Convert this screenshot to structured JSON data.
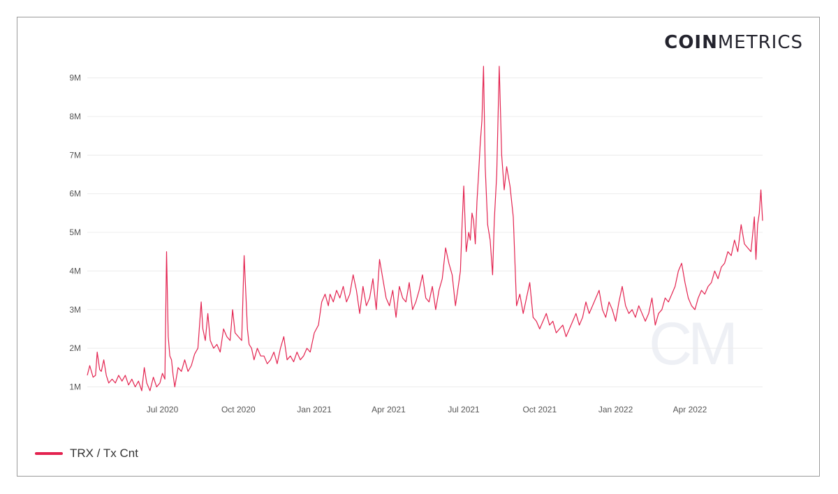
{
  "brand": {
    "bold": "COIN",
    "regular": "METRICS",
    "watermark": "CM"
  },
  "colors": {
    "series": "#e3224f",
    "grid": "#ececec",
    "frame": "#9a9a9a"
  },
  "legend": {
    "label": "TRX / Tx Cnt"
  },
  "chart_data": {
    "type": "line",
    "title": "",
    "xlabel": "",
    "ylabel": "",
    "y_tick_labels": [
      "1M",
      "2M",
      "3M",
      "4M",
      "5M",
      "6M",
      "7M",
      "8M",
      "9M"
    ],
    "y_ticks": [
      1000000,
      2000000,
      3000000,
      4000000,
      5000000,
      6000000,
      7000000,
      8000000,
      9000000
    ],
    "ylim": [
      900000,
      9300000
    ],
    "x_tick_labels": [
      "Jul 2020",
      "Oct 2020",
      "Jan 2021",
      "Apr 2021",
      "Jul 2021",
      "Oct 2021",
      "Jan 2022",
      "Apr 2022"
    ],
    "x_ticks": [
      "2020-07-01",
      "2020-10-01",
      "2021-01-01",
      "2021-04-01",
      "2021-07-01",
      "2021-10-01",
      "2022-01-01",
      "2022-04-01"
    ],
    "xlim": [
      "2020-04-01",
      "2022-06-28"
    ],
    "grid": "horizontal",
    "legend_position": "bottom-left",
    "series": [
      {
        "name": "TRX / Tx Cnt",
        "x": [
          "2020-04-01",
          "2020-04-04",
          "2020-04-08",
          "2020-04-11",
          "2020-04-13",
          "2020-04-16",
          "2020-04-18",
          "2020-04-21",
          "2020-04-24",
          "2020-04-27",
          "2020-05-01",
          "2020-05-05",
          "2020-05-09",
          "2020-05-13",
          "2020-05-17",
          "2020-05-21",
          "2020-05-25",
          "2020-05-29",
          "2020-06-02",
          "2020-06-06",
          "2020-06-09",
          "2020-06-12",
          "2020-06-16",
          "2020-06-20",
          "2020-06-24",
          "2020-06-28",
          "2020-07-01",
          "2020-07-04",
          "2020-07-06",
          "2020-07-08",
          "2020-07-10",
          "2020-07-12",
          "2020-07-14",
          "2020-07-16",
          "2020-07-20",
          "2020-07-24",
          "2020-07-28",
          "2020-08-01",
          "2020-08-05",
          "2020-08-09",
          "2020-08-13",
          "2020-08-17",
          "2020-08-19",
          "2020-08-22",
          "2020-08-25",
          "2020-08-28",
          "2020-09-01",
          "2020-09-05",
          "2020-09-09",
          "2020-09-13",
          "2020-09-17",
          "2020-09-21",
          "2020-09-24",
          "2020-09-27",
          "2020-10-01",
          "2020-10-05",
          "2020-10-08",
          "2020-10-12",
          "2020-10-14",
          "2020-10-17",
          "2020-10-20",
          "2020-10-24",
          "2020-10-28",
          "2020-11-01",
          "2020-11-05",
          "2020-11-09",
          "2020-11-13",
          "2020-11-17",
          "2020-11-21",
          "2020-11-25",
          "2020-11-29",
          "2020-12-03",
          "2020-12-07",
          "2020-12-11",
          "2020-12-15",
          "2020-12-19",
          "2020-12-23",
          "2020-12-27",
          "2021-01-01",
          "2021-01-06",
          "2021-01-10",
          "2021-01-14",
          "2021-01-18",
          "2021-01-20",
          "2021-01-24",
          "2021-01-28",
          "2021-02-01",
          "2021-02-05",
          "2021-02-09",
          "2021-02-13",
          "2021-02-17",
          "2021-02-21",
          "2021-02-25",
          "2021-03-01",
          "2021-03-05",
          "2021-03-09",
          "2021-03-13",
          "2021-03-17",
          "2021-03-21",
          "2021-03-25",
          "2021-03-29",
          "2021-04-02",
          "2021-04-06",
          "2021-04-10",
          "2021-04-14",
          "2021-04-18",
          "2021-04-22",
          "2021-04-26",
          "2021-04-30",
          "2021-05-04",
          "2021-05-08",
          "2021-05-12",
          "2021-05-16",
          "2021-05-20",
          "2021-05-24",
          "2021-05-28",
          "2021-06-01",
          "2021-06-05",
          "2021-06-09",
          "2021-06-13",
          "2021-06-17",
          "2021-06-21",
          "2021-06-23",
          "2021-06-25",
          "2021-06-27",
          "2021-06-29",
          "2021-07-01",
          "2021-07-04",
          "2021-07-07",
          "2021-07-09",
          "2021-07-11",
          "2021-07-13",
          "2021-07-15",
          "2021-07-17",
          "2021-07-19",
          "2021-07-21",
          "2021-07-23",
          "2021-07-25",
          "2021-07-27",
          "2021-07-30",
          "2021-08-02",
          "2021-08-05",
          "2021-08-07",
          "2021-08-10",
          "2021-08-13",
          "2021-08-16",
          "2021-08-19",
          "2021-08-22",
          "2021-08-26",
          "2021-08-30",
          "2021-09-03",
          "2021-09-07",
          "2021-09-11",
          "2021-09-15",
          "2021-09-19",
          "2021-09-23",
          "2021-09-27",
          "2021-10-01",
          "2021-10-05",
          "2021-10-09",
          "2021-10-13",
          "2021-10-17",
          "2021-10-21",
          "2021-10-25",
          "2021-10-29",
          "2021-11-02",
          "2021-11-06",
          "2021-11-10",
          "2021-11-14",
          "2021-11-18",
          "2021-11-22",
          "2021-11-26",
          "2021-11-30",
          "2021-12-04",
          "2021-12-08",
          "2021-12-12",
          "2021-12-16",
          "2021-12-20",
          "2021-12-24",
          "2021-12-28",
          "2022-01-01",
          "2022-01-05",
          "2022-01-09",
          "2022-01-13",
          "2022-01-17",
          "2022-01-21",
          "2022-01-25",
          "2022-01-29",
          "2022-02-02",
          "2022-02-06",
          "2022-02-10",
          "2022-02-14",
          "2022-02-18",
          "2022-02-22",
          "2022-02-26",
          "2022-03-02",
          "2022-03-06",
          "2022-03-10",
          "2022-03-14",
          "2022-03-18",
          "2022-03-22",
          "2022-03-26",
          "2022-03-30",
          "2022-04-03",
          "2022-04-07",
          "2022-04-11",
          "2022-04-15",
          "2022-04-19",
          "2022-04-23",
          "2022-04-27",
          "2022-05-01",
          "2022-05-05",
          "2022-05-09",
          "2022-05-13",
          "2022-05-17",
          "2022-05-21",
          "2022-05-25",
          "2022-05-29",
          "2022-06-02",
          "2022-06-06",
          "2022-06-10",
          "2022-06-14",
          "2022-06-18",
          "2022-06-20",
          "2022-06-22",
          "2022-06-24",
          "2022-06-26",
          "2022-06-28"
        ],
        "values": [
          1300000,
          1550000,
          1250000,
          1300000,
          1900000,
          1450000,
          1400000,
          1700000,
          1300000,
          1100000,
          1200000,
          1100000,
          1300000,
          1150000,
          1300000,
          1050000,
          1200000,
          1000000,
          1150000,
          900000,
          1500000,
          1100000,
          900000,
          1250000,
          1000000,
          1100000,
          1350000,
          1200000,
          4500000,
          2300000,
          1800000,
          1700000,
          1300000,
          1000000,
          1500000,
          1400000,
          1700000,
          1400000,
          1550000,
          1850000,
          2000000,
          3200000,
          2500000,
          2200000,
          2900000,
          2200000,
          2000000,
          2100000,
          1900000,
          2500000,
          2300000,
          2200000,
          3000000,
          2400000,
          2300000,
          2200000,
          4400000,
          2500000,
          2100000,
          2000000,
          1700000,
          2000000,
          1800000,
          1800000,
          1600000,
          1700000,
          1900000,
          1600000,
          2000000,
          2300000,
          1700000,
          1800000,
          1650000,
          1900000,
          1700000,
          1800000,
          2000000,
          1900000,
          2400000,
          2600000,
          3200000,
          3400000,
          3100000,
          3400000,
          3200000,
          3500000,
          3300000,
          3600000,
          3200000,
          3400000,
          3900000,
          3500000,
          2900000,
          3600000,
          3100000,
          3300000,
          3800000,
          3000000,
          4300000,
          3800000,
          3300000,
          3100000,
          3500000,
          2800000,
          3600000,
          3300000,
          3200000,
          3700000,
          3000000,
          3200000,
          3500000,
          3900000,
          3300000,
          3200000,
          3600000,
          3000000,
          3500000,
          3800000,
          4600000,
          4200000,
          3900000,
          3100000,
          3400000,
          3700000,
          4000000,
          5200000,
          6200000,
          4500000,
          5000000,
          4800000,
          5500000,
          5300000,
          4700000,
          5800000,
          6500000,
          7300000,
          7900000,
          9300000,
          6700000,
          5200000,
          4800000,
          3900000,
          5300000,
          6500000,
          9300000,
          7000000,
          6100000,
          6700000,
          6200000,
          5400000,
          3100000,
          3400000,
          2900000,
          3300000,
          3700000,
          2800000,
          2700000,
          2500000,
          2700000,
          2900000,
          2600000,
          2700000,
          2400000,
          2500000,
          2600000,
          2300000,
          2500000,
          2700000,
          2900000,
          2600000,
          2800000,
          3200000,
          2900000,
          3100000,
          3300000,
          3500000,
          3000000,
          2800000,
          3200000,
          3000000,
          2700000,
          3200000,
          3600000,
          3100000,
          2900000,
          3000000,
          2800000,
          3100000,
          2900000,
          2700000,
          2900000,
          3300000,
          2600000,
          2900000,
          3000000,
          3300000,
          3200000,
          3400000,
          3600000,
          4000000,
          4200000,
          3700000,
          3300000,
          3100000,
          3000000,
          3300000,
          3500000,
          3400000,
          3600000,
          3700000,
          4000000,
          3800000,
          4100000,
          4200000,
          4500000,
          4400000,
          4800000,
          4500000,
          5200000,
          4700000,
          4600000,
          4500000,
          5400000,
          4300000,
          5200000,
          5500000,
          6100000,
          5300000
        ]
      }
    ]
  }
}
